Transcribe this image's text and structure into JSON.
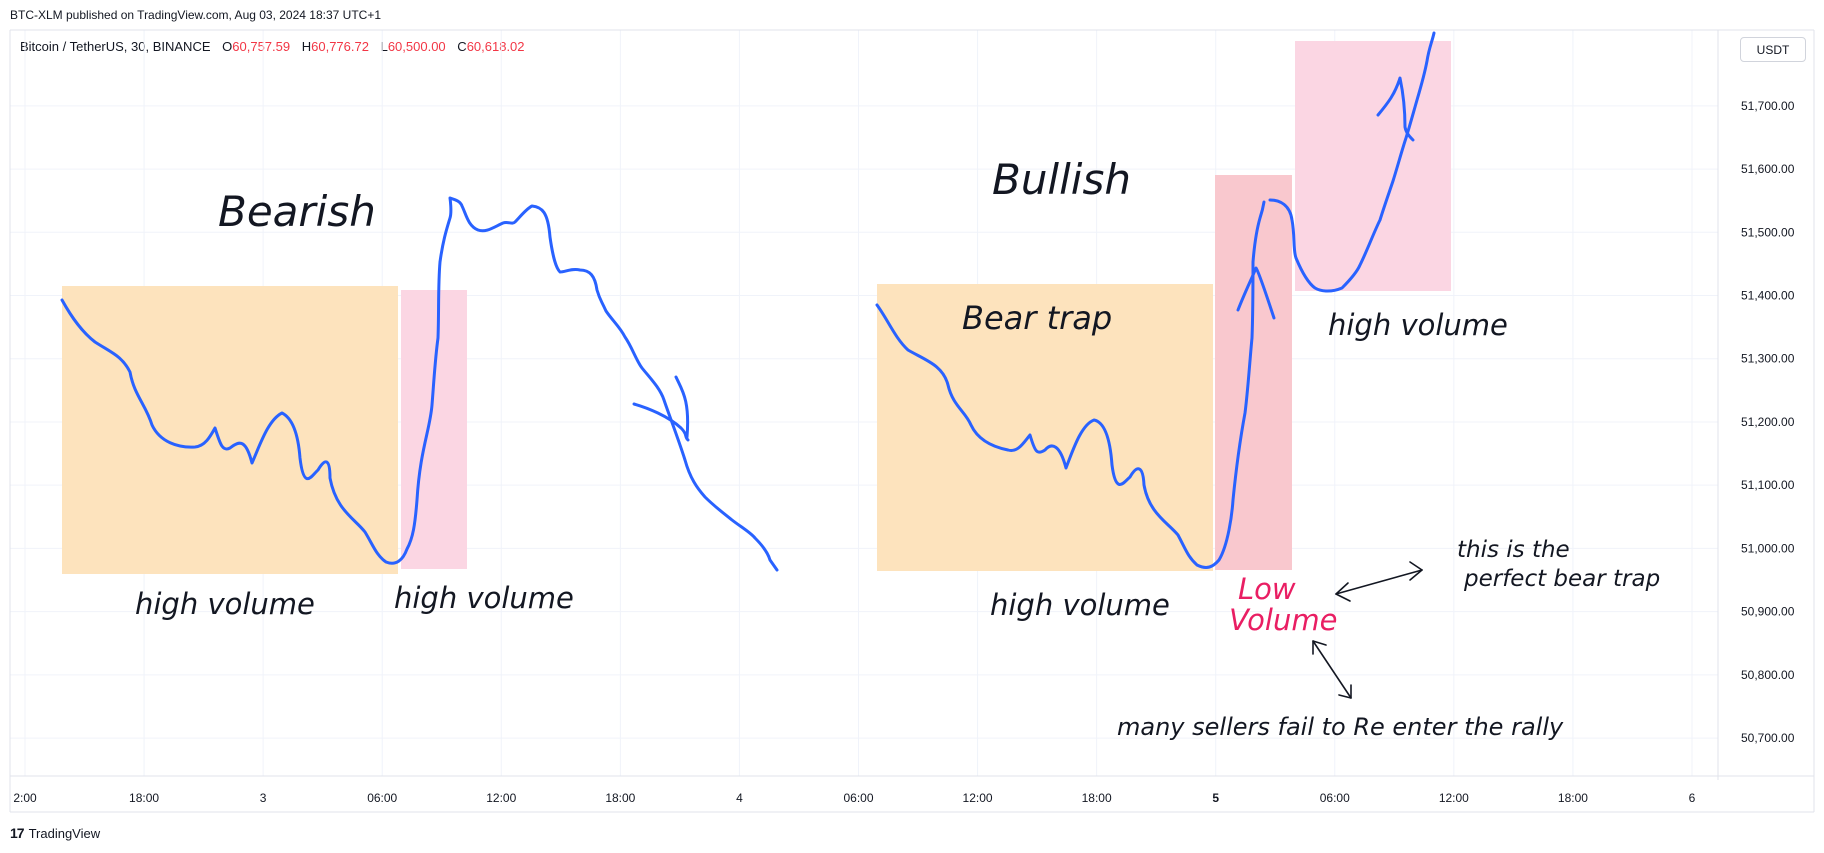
{
  "header": {
    "publisher": "BTC-XLM published on TradingView.com, Aug 03, 2024 18:37 UTC+1",
    "symbol": "Bitcoin / TetherUS, 30, BINANCE",
    "ohlc": [
      {
        "k": "O",
        "v": "60,757.59"
      },
      {
        "k": "H",
        "v": "60,776.72"
      },
      {
        "k": "L",
        "v": "60,500.00"
      },
      {
        "k": "C",
        "v": "60,618.02"
      }
    ],
    "currency": "USDT"
  },
  "footer": {
    "logo": "17",
    "brand": "TradingView"
  },
  "chart_data": {
    "type": "line",
    "ylim": [
      50640,
      51820
    ],
    "y_ticks": [
      51700,
      51600,
      51500,
      51400,
      51300,
      51200,
      51100,
      51000,
      50900,
      50800,
      50700
    ],
    "y_tick_labels": [
      "51,700.00",
      "51,600.00",
      "51,500.00",
      "51,400.00",
      "51,300.00",
      "51,200.00",
      "51,100.00",
      "51,000.00",
      "50,900.00",
      "50,800.00",
      "50,700.00"
    ],
    "x_ticks": [
      {
        "label": "2:00",
        "bold": false
      },
      {
        "label": "18:00",
        "bold": false
      },
      {
        "label": "3",
        "bold": false
      },
      {
        "label": "06:00",
        "bold": false
      },
      {
        "label": "12:00",
        "bold": false
      },
      {
        "label": "18:00",
        "bold": false
      },
      {
        "label": "4",
        "bold": false
      },
      {
        "label": "06:00",
        "bold": false
      },
      {
        "label": "12:00",
        "bold": false
      },
      {
        "label": "18:00",
        "bold": false
      },
      {
        "label": "5",
        "bold": true
      },
      {
        "label": "06:00",
        "bold": false
      },
      {
        "label": "12:00",
        "bold": false
      },
      {
        "label": "18:00",
        "bold": false
      },
      {
        "label": "6",
        "bold": false
      }
    ],
    "annotations": [
      {
        "text": "Bearish",
        "style": "title"
      },
      {
        "text": "Bullish",
        "style": "title"
      },
      {
        "text": "Bear trap",
        "style": "label"
      },
      {
        "text": "high volume",
        "style": "label"
      },
      {
        "text": "high volume",
        "style": "label"
      },
      {
        "text": "high volume",
        "style": "label"
      },
      {
        "text": "high volume",
        "style": "label"
      },
      {
        "text": "Low",
        "style": "accent"
      },
      {
        "text": "Volume",
        "style": "accent"
      },
      {
        "text": "this is the",
        "style": "note"
      },
      {
        "text": "perfect bear trap",
        "style": "note"
      },
      {
        "text": "many sellers fail to Re enter the rally",
        "style": "note"
      }
    ],
    "colors": {
      "line": "#2962ff",
      "orange_box": "#fde3bd",
      "pink_box": "#fbd6e3",
      "red_box": "#f9c8ce",
      "accent_text": "#e91e63",
      "grid": "#f0f3fa",
      "axis_text": "#131722"
    }
  }
}
